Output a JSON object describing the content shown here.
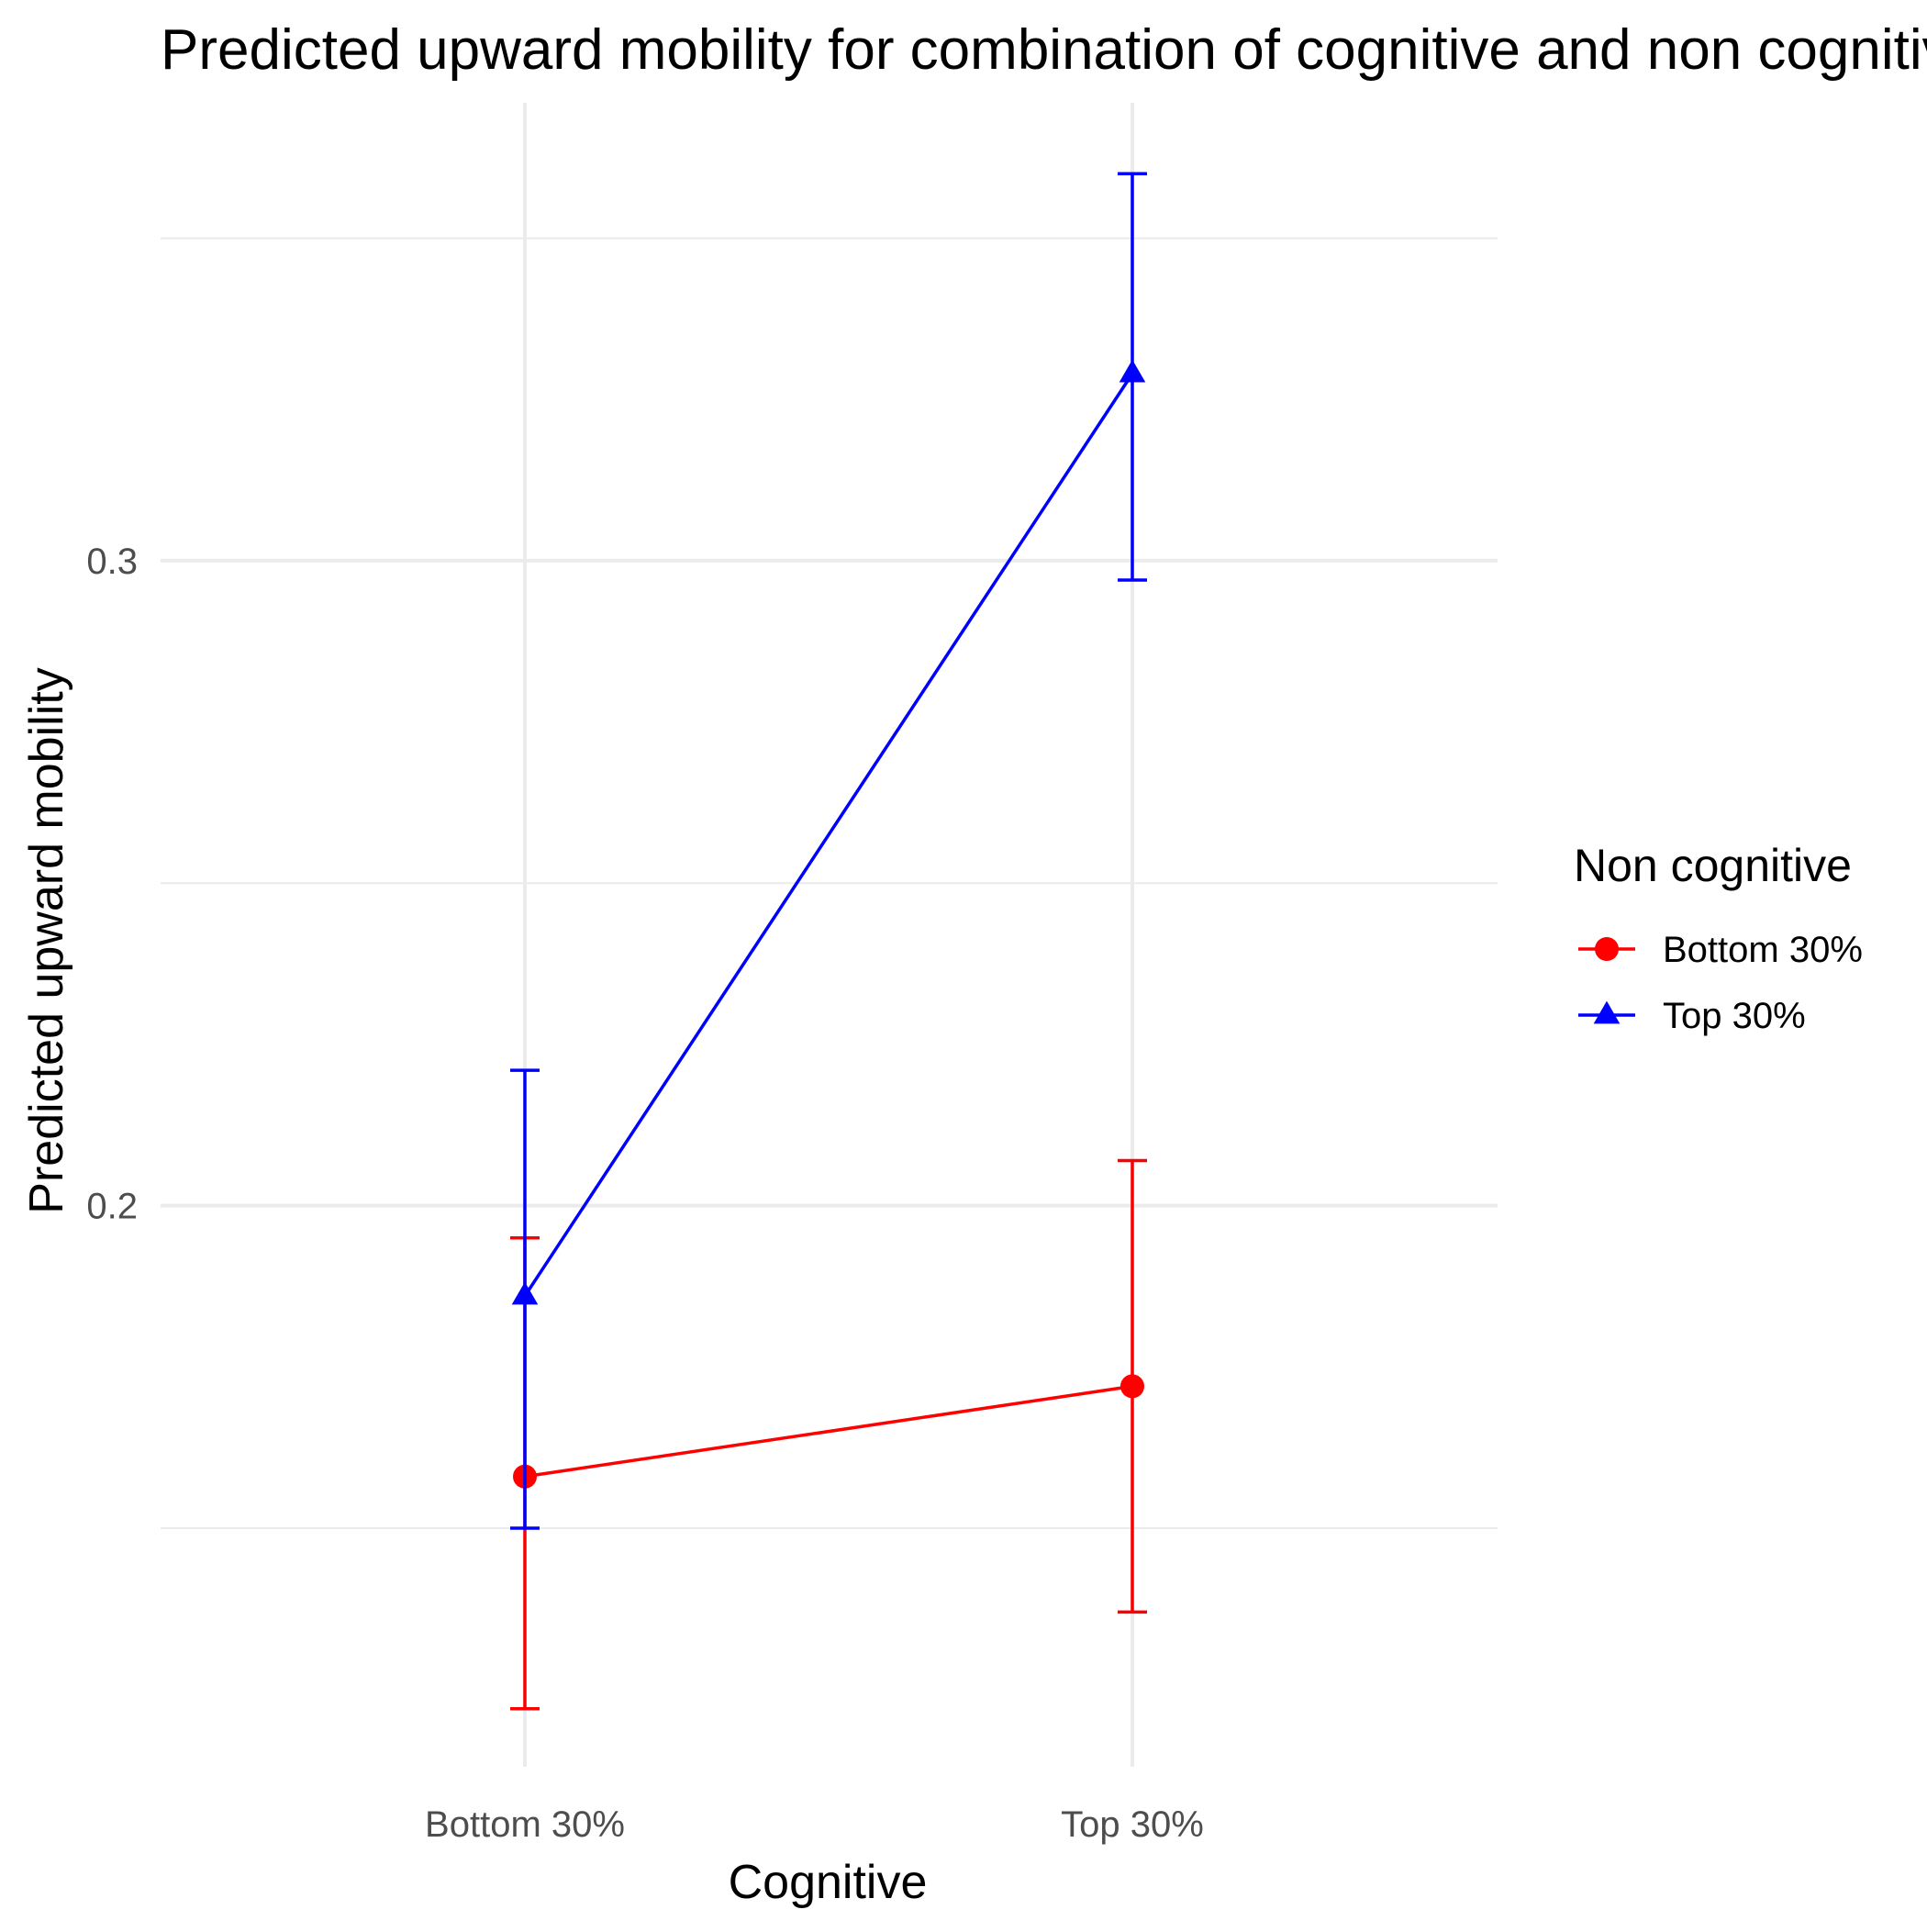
{
  "chart_data": {
    "type": "line",
    "title": "Predicted upward mobility for combination of cognitive and non cognitive",
    "xlabel": "Cognitive",
    "ylabel": "Predicted upward mobility",
    "categories": [
      "Bottom 30%",
      "Top 30%"
    ],
    "y_ticks": [
      0.2,
      0.3
    ],
    "y_tick_labels": [
      "0.2",
      "0.3"
    ],
    "ylim": [
      0.113,
      0.371
    ],
    "grid": true,
    "legend": {
      "title": "Non cognitive",
      "position": "right"
    },
    "series": [
      {
        "name": "Bottom 30%",
        "color": "#ff0000",
        "marker": "circle",
        "values": [
          0.158,
          0.172
        ],
        "lower": [
          0.122,
          0.137
        ],
        "upper": [
          0.195,
          0.207
        ]
      },
      {
        "name": "Top 30%",
        "color": "#0000ff",
        "marker": "triangle",
        "values": [
          0.186,
          0.329
        ],
        "lower": [
          0.15,
          0.297
        ],
        "upper": [
          0.221,
          0.36
        ]
      }
    ]
  }
}
